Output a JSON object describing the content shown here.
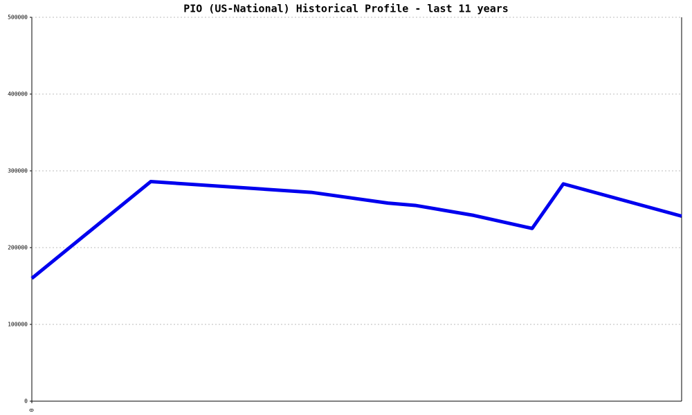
{
  "chart_data": {
    "type": "line",
    "title": "PIO (US-National) Historical Profile - last 11 years",
    "x": [
      0,
      18.3,
      43,
      54.8,
      59,
      68,
      77,
      81.8,
      100
    ],
    "series": [
      {
        "color": "#0000ee",
        "values": [
          160000,
          286000,
          272000,
          258000,
          255000,
          242000,
          225000,
          283000,
          241000
        ]
      }
    ],
    "xlim": [
      0,
      100
    ],
    "xticks": [
      0
    ],
    "ylim": [
      0,
      500000
    ],
    "yticks": [
      0,
      100000,
      200000,
      300000,
      400000,
      500000
    ],
    "grid": true
  }
}
